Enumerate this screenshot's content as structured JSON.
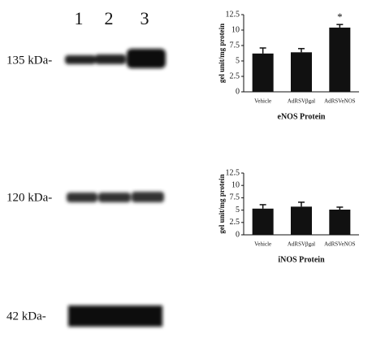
{
  "blot": {
    "lanes": [
      "1",
      "2",
      "3"
    ],
    "markers": [
      "135 kDa-",
      "120 kDa-",
      "42 kDa-"
    ]
  },
  "chart_data": [
    {
      "type": "bar",
      "title": "eNOS Protein",
      "y_label": "gel unit/mg protein",
      "categories": [
        "Vehicle",
        "AdRSVβgal",
        "AdRSVeNOS"
      ],
      "values": [
        6.2,
        6.4,
        10.4
      ],
      "errors": [
        0.9,
        0.6,
        0.5
      ],
      "color": "#111111",
      "annotations": [
        {
          "category": "AdRSVeNOS",
          "text": "*"
        }
      ],
      "ylim": [
        0,
        12.5
      ],
      "yticks": [
        0,
        2.5,
        5,
        7.5,
        10,
        12.5
      ]
    },
    {
      "type": "bar",
      "title": "iNOS Protein",
      "y_label": "gel unit/mg protein",
      "categories": [
        "Vehicle",
        "AdRSVβgal",
        "AdRSVeNOS"
      ],
      "values": [
        5.3,
        5.7,
        5.1
      ],
      "errors": [
        0.8,
        0.9,
        0.5
      ],
      "color": "#111111",
      "ylim": [
        0,
        12.5
      ],
      "yticks": [
        0,
        2.5,
        5,
        7.5,
        10,
        12.5
      ]
    }
  ]
}
